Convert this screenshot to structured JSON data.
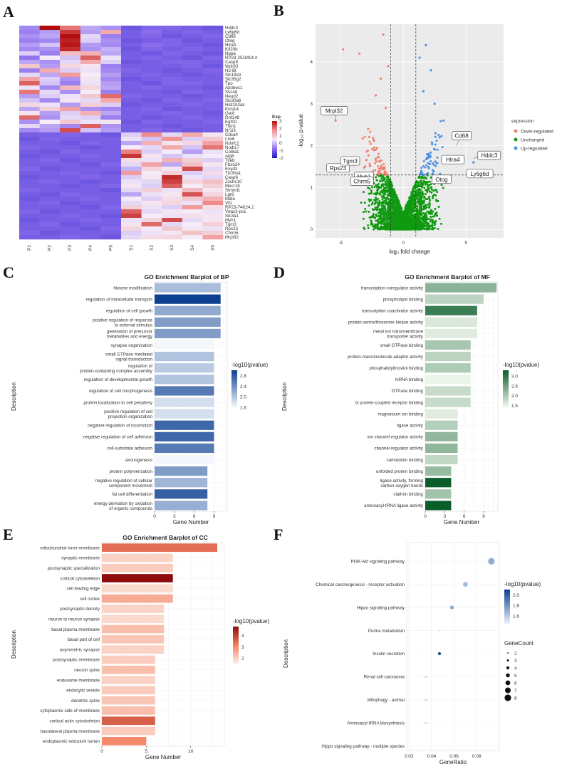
{
  "panel_letters": [
    "A",
    "B",
    "C",
    "D",
    "E",
    "F"
  ],
  "chart_data": [
    {
      "type": "heatmap",
      "panel": "A",
      "columns": [
        "P1",
        "P2",
        "P3",
        "P4",
        "P5",
        "S1",
        "S2",
        "S3",
        "S4",
        "S5"
      ],
      "rows": [
        "Hddc3",
        "Ly6g6d",
        "Cd68",
        "Otog",
        "Htra4",
        "Kif20b",
        "Nppa",
        "RP23-251M14.4",
        "Casp9",
        "Wdr93",
        "H2-Bl",
        "Slc19a3",
        "Slc35g2",
        "Tpo",
        "Apobec1",
        "Ssc4d",
        "Neurl2",
        "Slc30a6",
        "Hist1h2ak",
        "Kcnj14",
        "Gem",
        "Rnf148",
        "Egf10",
        "Tfyn1",
        "Nr1i3",
        "Cdca4",
        "Lhx6",
        "Ndufc2",
        "Nudt17",
        "Col8a1",
        "Alg8",
        "Tifab",
        "Fbxo24",
        "Exyd3",
        "Ttc30a1",
        "Casp8",
        "Zcchc10",
        "Mecr18",
        "Stmnd1",
        "Lgr6",
        "Mafa",
        "Vil1",
        "RP23-74K24.2",
        "Vdac3-ps1",
        "Slc3a1",
        "Myh1",
        "Tgm3",
        "Rps23",
        "Chrm5",
        "Mrpl32"
      ],
      "legend_title": "Exp",
      "legend_ticks": [
        "3",
        "2",
        "1",
        "0",
        "-1",
        "-2"
      ],
      "range": [
        -2,
        3
      ],
      "colors": {
        "low": "#1a1ab8",
        "mid_low": "#8f6fef",
        "mid": "#f4ecf8",
        "high": "#b20d0d"
      },
      "values": [
        [
          -0.5,
          3,
          2,
          -0.2,
          -0.4,
          -1.1,
          -0.9,
          -0.9,
          -1.0,
          -1.1
        ],
        [
          -0.6,
          -0.3,
          2.6,
          -0.3,
          1.4,
          -1.0,
          -0.8,
          -1.0,
          -0.9,
          -1.0
        ],
        [
          -0.4,
          -0.2,
          3,
          0.3,
          -0.6,
          -1.0,
          -0.9,
          -1.1,
          -1.0,
          -0.9
        ],
        [
          -0.6,
          -0.5,
          2.8,
          0.2,
          -0.4,
          -1.1,
          -1.0,
          -0.9,
          -1.1,
          -1.0
        ],
        [
          -0.3,
          0.1,
          2.9,
          -0.3,
          -0.5,
          -1.0,
          -0.8,
          -0.9,
          -1.0,
          -1.1
        ],
        [
          -0.5,
          -0.4,
          2.7,
          -0.4,
          -0.1,
          -1.1,
          -0.9,
          -1.0,
          -0.9,
          -1.0
        ],
        [
          0.2,
          -0.6,
          1.1,
          1.3,
          -0.2,
          -1.0,
          -1.1,
          -0.9,
          -1.0,
          -1.1
        ],
        [
          -0.7,
          0.5,
          0.1,
          2.2,
          0.4,
          -1.0,
          -0.9,
          -1.0,
          -1.1,
          -0.9
        ],
        [
          -0.2,
          -0.4,
          0.3,
          1.4,
          0.2,
          -1.1,
          -1.0,
          -0.9,
          -0.9,
          -1.0
        ],
        [
          1.0,
          -0.3,
          0.8,
          0.6,
          -0.6,
          -1.0,
          -1.0,
          -1.0,
          -0.9,
          -1.1
        ],
        [
          -0.6,
          1.4,
          0.2,
          0.4,
          -0.5,
          -0.9,
          -1.0,
          -1.1,
          -1.0,
          -0.9
        ],
        [
          0.3,
          -0.2,
          1.6,
          0.5,
          -0.3,
          -1.0,
          -0.9,
          -1.0,
          -1.1,
          -1.0
        ],
        [
          1.5,
          0.2,
          -0.4,
          0.6,
          -0.5,
          -1.1,
          -1.0,
          -0.9,
          -1.0,
          -1.0
        ],
        [
          2.2,
          0.1,
          -0.6,
          0.4,
          -0.3,
          -1.0,
          -1.1,
          -0.9,
          -0.9,
          -1.0
        ],
        [
          0.4,
          -0.5,
          1.2,
          0.8,
          -0.2,
          -1.0,
          -0.9,
          -1.0,
          -1.0,
          -1.1
        ],
        [
          2.0,
          0.3,
          -0.4,
          0.5,
          -0.6,
          -1.0,
          -1.0,
          -1.1,
          -0.9,
          -1.0
        ],
        [
          -0.3,
          0.2,
          0.4,
          1.0,
          2.1,
          -0.9,
          -1.0,
          -1.0,
          -1.1,
          -1.0
        ],
        [
          0.1,
          -0.5,
          0.6,
          0.3,
          1.4,
          -1.0,
          -1.1,
          -0.9,
          -1.0,
          -0.9
        ],
        [
          0.8,
          0.4,
          -0.3,
          0.9,
          0.2,
          -1.1,
          -1.0,
          -1.0,
          -0.9,
          -1.0
        ],
        [
          -0.2,
          0.9,
          1.5,
          -0.4,
          -0.5,
          -1.0,
          -0.9,
          -1.1,
          -1.0,
          -1.0
        ],
        [
          0.6,
          -0.3,
          0.2,
          1.3,
          -0.2,
          -1.0,
          -1.0,
          -0.9,
          -1.0,
          -1.1
        ],
        [
          2.1,
          -0.4,
          0.3,
          0.2,
          -0.6,
          -1.0,
          -1.1,
          -1.0,
          -0.9,
          -1.0
        ],
        [
          -0.4,
          0.5,
          1.0,
          0.4,
          0.6,
          -1.1,
          -0.9,
          -1.0,
          -1.0,
          -0.9
        ],
        [
          0.3,
          -0.2,
          -0.5,
          2.2,
          -0.4,
          -1.0,
          -1.0,
          -1.1,
          -1.0,
          -1.0
        ],
        [
          -0.5,
          -0.3,
          2.4,
          0.1,
          -0.3,
          -1.0,
          -0.9,
          -1.0,
          -1.1,
          -1.0
        ],
        [
          -1.0,
          -1.0,
          -0.9,
          -1.0,
          -1.1,
          0.2,
          1.8,
          0.3,
          1.4,
          0.6
        ],
        [
          -1.1,
          -0.9,
          -1.0,
          -1.0,
          -1.0,
          0.4,
          0.1,
          1.7,
          0.2,
          1.0
        ],
        [
          -1.0,
          -1.0,
          -1.1,
          -0.9,
          -1.0,
          -0.2,
          1.3,
          0.6,
          0.8,
          1.5
        ],
        [
          -0.9,
          -1.0,
          -1.0,
          -1.1,
          -1.0,
          0.5,
          0.3,
          1.4,
          0.1,
          2.0
        ],
        [
          -1.0,
          -1.1,
          -0.9,
          -1.0,
          -1.0,
          1.9,
          0.2,
          0.5,
          -0.3,
          0.4
        ],
        [
          -1.1,
          -1.0,
          -1.0,
          -0.9,
          -1.0,
          2.6,
          0.6,
          0.1,
          0.4,
          0.5
        ],
        [
          -1.0,
          -0.9,
          -1.1,
          -1.0,
          -1.0,
          0.7,
          0.4,
          1.3,
          0.9,
          0.2
        ],
        [
          -1.0,
          -1.0,
          -1.0,
          -1.1,
          -0.9,
          0.3,
          1.5,
          -0.2,
          1.1,
          0.6
        ],
        [
          -0.9,
          -1.1,
          -1.0,
          -1.0,
          -1.0,
          -0.1,
          0.8,
          0.6,
          2.4,
          0.3
        ],
        [
          -1.0,
          -1.0,
          -0.9,
          -1.0,
          -1.1,
          1.6,
          0.5,
          0.9,
          0.2,
          0.7
        ],
        [
          -1.1,
          -1.0,
          -1.0,
          -0.9,
          -1.0,
          0.2,
          0.6,
          2.7,
          0.4,
          0.3
        ],
        [
          -1.0,
          -0.9,
          -1.0,
          -1.1,
          -1.0,
          0.4,
          0.3,
          2.5,
          0.8,
          1.1
        ],
        [
          -1.0,
          -1.0,
          -1.1,
          -1.0,
          -0.9,
          0.6,
          0.2,
          2.2,
          0.5,
          0.9
        ],
        [
          -0.9,
          -1.0,
          -1.0,
          -1.0,
          -1.1,
          0.3,
          0.9,
          0.4,
          1.2,
          0.6
        ],
        [
          -1.0,
          -1.1,
          -0.9,
          -1.0,
          -1.0,
          -0.2,
          0.4,
          0.6,
          2.3,
          0.8
        ],
        [
          -1.1,
          -1.0,
          -1.0,
          -0.9,
          -1.0,
          0.5,
          0.2,
          0.7,
          1.0,
          1.3
        ],
        [
          -1.0,
          -0.9,
          -1.1,
          -1.0,
          -1.0,
          0.3,
          0.6,
          0.8,
          0.4,
          1.8
        ],
        [
          -1.0,
          -1.0,
          -1.0,
          -1.1,
          -0.9,
          0.9,
          0.4,
          0.2,
          1.6,
          0.7
        ],
        [
          -0.9,
          -1.1,
          -1.0,
          -1.0,
          -1.0,
          2.2,
          0.3,
          0.6,
          0.5,
          0.4
        ],
        [
          -1.0,
          -1.0,
          -0.9,
          -1.0,
          -1.1,
          2.5,
          0.5,
          0.4,
          0.7,
          0.6
        ],
        [
          -1.1,
          -1.0,
          -1.0,
          -0.9,
          -1.0,
          0.4,
          0.8,
          2.4,
          0.3,
          0.6
        ],
        [
          -1.0,
          -0.9,
          -1.1,
          -1.0,
          -1.0,
          0.6,
          2.1,
          0.3,
          0.5,
          0.9
        ],
        [
          -1.0,
          -1.0,
          -1.0,
          -1.1,
          -0.9,
          0.8,
          0.5,
          1.0,
          0.6,
          0.4
        ],
        [
          -0.9,
          -1.1,
          -1.0,
          -1.0,
          -1.0,
          0.2,
          0.4,
          0.6,
          1.1,
          0.9
        ],
        [
          -1.0,
          -1.0,
          -0.9,
          -1.0,
          -1.1,
          0.3,
          0.7,
          0.8,
          0.5,
          1.5
        ]
      ]
    },
    {
      "type": "scatter",
      "panel": "B",
      "xlabel": "log₂ fold change",
      "ylabel": "-log₁₀ p-value",
      "xlim": [
        -7,
        8
      ],
      "ylim": [
        -0.2,
        4.9
      ],
      "xticks": [
        -5,
        0,
        5
      ],
      "yticks": [
        0,
        1,
        2,
        3,
        4
      ],
      "thresholds": {
        "x": [
          -1,
          1
        ],
        "y": 1.3
      },
      "legend_title": "expression",
      "legend": [
        {
          "label": "Down-regulated",
          "color": "#f08070"
        },
        {
          "label": "Unchanged",
          "color": "#119a11"
        },
        {
          "label": "Up-regulated",
          "color": "#4a90e2"
        }
      ],
      "labeled_points": [
        {
          "label": "Mrpl32",
          "x": -5.4,
          "y": 2.6
        },
        {
          "label": "Rps23",
          "x": -4.3,
          "y": 1.4
        },
        {
          "label": "Tgm3",
          "x": -3.9,
          "y": 1.5
        },
        {
          "label": "Myh1",
          "x": -2.9,
          "y": 1.3
        },
        {
          "label": "Chrm5",
          "x": -2.5,
          "y": 1.25
        },
        {
          "label": "Cd68",
          "x": 4.2,
          "y": 2.0
        },
        {
          "label": "Hddc3",
          "x": 5.6,
          "y": 1.7
        },
        {
          "label": "Htra4",
          "x": 3.5,
          "y": 1.6
        },
        {
          "label": "Ly6g6d",
          "x": 5.3,
          "y": 1.4
        },
        {
          "label": "Otog",
          "x": 2.6,
          "y": 1.3
        }
      ]
    },
    {
      "type": "bar",
      "panel": "C",
      "orientation": "horizontal",
      "title": "GO Enrichment Barplot of BP",
      "xlabel": "Gene Number",
      "ylabel": "Description",
      "xlim": [
        0,
        11
      ],
      "xticks": [
        0,
        3,
        6,
        9
      ],
      "legend_title": "-log10(pvalue)",
      "legend_ticks": [
        "2.8",
        "2.4",
        "2.0",
        "1.6"
      ],
      "color_range": [
        1.6,
        3.0
      ],
      "colors": {
        "low": "#f4f8fd",
        "high": "#0b3f91"
      },
      "categories": [
        "histone modification",
        "regulation of intracellular transport",
        "regulation of cell growth",
        "positive regulation of response to external stimulus",
        "generation of precursor metabolites and energy",
        "synapse organization",
        "small GTPase mediated signal transduction",
        "regulation of protein-containing complex assembly",
        "regulation of developmental growth",
        "regulation of cell morphogenesis",
        "protein localization to cell periphery",
        "positive regulation of cell projection organization",
        "negative regulation of locomotion",
        "negative regulation of cell adhesion",
        "cell-substrate adhesion",
        "axonogenesis",
        "protein polymerization",
        "negative regulation of cellular component movement",
        "fat cell differentiation",
        "energy derivation by oxidation of organic compounds"
      ],
      "values": [
        10,
        10,
        10,
        10,
        10,
        9,
        9,
        9,
        9,
        9,
        9,
        9,
        9,
        9,
        9,
        9,
        8,
        8,
        8,
        8
      ],
      "color_values": [
        2.05,
        3.0,
        2.2,
        2.3,
        2.3,
        1.6,
        2.0,
        1.95,
        2.0,
        2.55,
        1.8,
        1.8,
        2.7,
        2.7,
        2.55,
        1.6,
        2.3,
        2.1,
        2.75,
        2.15
      ]
    },
    {
      "type": "bar",
      "panel": "D",
      "orientation": "horizontal",
      "title": "GO Enrichment Barplot of MF",
      "xlabel": "Gene Number",
      "ylabel": "Description",
      "xlim": [
        0,
        11.2
      ],
      "xticks": [
        0,
        3,
        6,
        9
      ],
      "legend_title": "-log10(pvalue)",
      "legend_ticks": [
        "3.0",
        "2.5",
        "2.0",
        "1.5"
      ],
      "color_range": [
        1.4,
        3.3
      ],
      "colors": {
        "low": "#f1f8ef",
        "high": "#0b5d2a"
      },
      "categories": [
        "transcription coregulator activity",
        "phospholipid binding",
        "transcription coactivator activity",
        "protein serine/threonine kinase activity",
        "metal ion transmembrane transporter activity",
        "small GTPase binding",
        "protein-macromolecule adaptor activity",
        "phosphatidylinositol binding",
        "mRNA binding",
        "GTPase binding",
        "G protein-coupled receptor binding",
        "magnesium ion binding",
        "ligase activity",
        "ion channel regulator activity",
        "channel regulator activity",
        "calmodulin binding",
        "unfolded protein binding",
        "ligase activity, forming carbon-oxygen bonds",
        "clathrin binding",
        "aminoacyl-tRNA ligase activity"
      ],
      "values": [
        11,
        9,
        8,
        8,
        8,
        7,
        7,
        7,
        7,
        7,
        7,
        5,
        5,
        5,
        5,
        5,
        4,
        4,
        4,
        4
      ],
      "color_values": [
        2.25,
        1.85,
        2.9,
        1.6,
        1.55,
        2.0,
        1.85,
        1.95,
        1.45,
        1.75,
        1.75,
        1.55,
        1.9,
        2.2,
        2.2,
        1.8,
        2.15,
        3.3,
        2.05,
        3.3
      ]
    },
    {
      "type": "bar",
      "panel": "E",
      "orientation": "horizontal",
      "title": "GO Enrichment Barplot of CC",
      "xlabel": "Gene Number",
      "ylabel": "Description",
      "xlim": [
        0,
        13.8
      ],
      "xticks": [
        0,
        5,
        10
      ],
      "legend_title": "-log10(pvalue)",
      "legend_ticks": [
        "4",
        "3",
        "2"
      ],
      "color_range": [
        1.5,
        4.8
      ],
      "colors": {
        "low": "#fdeee6",
        "mid": "#f37f60",
        "high": "#8e0c0c"
      },
      "categories": [
        "mitochondrial inner membrane",
        "synaptic membrane",
        "postsynaptic specialization",
        "cortical cytoskeleton",
        "cell leading edge",
        "cell cortex",
        "postsynaptic density",
        "neuron to neuron synapse",
        "basal plasma membrane",
        "basal part of cell",
        "asymmetric synapse",
        "postsynaptic membrane",
        "neuron spine",
        "endosome membrane",
        "endocytic vesicle",
        "dendritic spine",
        "cytoplasmic side of membrane",
        "cortical actin cytoskeleton",
        "basolateral plasma membrane",
        "endoplasmic reticulum lumen"
      ],
      "values": [
        13,
        8,
        8,
        8,
        8,
        8,
        7,
        7,
        7,
        7,
        7,
        6,
        6,
        6,
        6,
        6,
        6,
        6,
        6,
        5
      ],
      "color_values": [
        3.4,
        1.9,
        2.0,
        4.8,
        1.8,
        2.5,
        1.9,
        1.8,
        2.2,
        2.1,
        1.9,
        2.0,
        2.2,
        1.9,
        2.0,
        2.1,
        2.2,
        3.6,
        2.0,
        3.0
      ]
    },
    {
      "type": "scatter",
      "panel": "F",
      "subtype": "dotplot",
      "title": "KEGG Enrichment Dotplot",
      "xlabel": "GeneRatio",
      "ylabel": "Description",
      "xlim": [
        0.018,
        0.1
      ],
      "xticks": [
        0.02,
        0.04,
        0.06,
        0.08
      ],
      "xtick_labels": [
        "0.02",
        "0.04",
        "0.06",
        "0.08"
      ],
      "categories": [
        "PI3K-Akt signaling pathway",
        "Chemical carcinogenesis - receptor activation",
        "Hippo signaling pathway",
        "Purine metabolism",
        "Insulin secretion",
        "Renal cell carcinoma",
        "Mitophagy - animal",
        "Aminoacyl-tRNA biosynthesis",
        "Hippo signaling pathway - multiple species"
      ],
      "x": [
        0.093,
        0.07,
        0.058,
        0.047,
        0.047,
        0.035,
        0.035,
        0.035,
        0.023
      ],
      "sizes": [
        8,
        6,
        5,
        4,
        4,
        3,
        3,
        3,
        2
      ],
      "color_values": [
        1.7,
        1.65,
        1.7,
        1.45,
        2.05,
        1.55,
        1.55,
        1.55,
        1.45
      ],
      "legend_title": "-log10(pvalue)",
      "legend_ticks": [
        "2.0",
        "1.8",
        "1.6"
      ],
      "color_range": [
        1.45,
        2.1
      ],
      "colors": {
        "low": "#eaf2fb",
        "high": "#0b3f91"
      },
      "size_legend_title": "GeneCount",
      "size_legend": [
        2,
        3,
        4,
        5,
        6,
        7,
        8
      ]
    }
  ]
}
